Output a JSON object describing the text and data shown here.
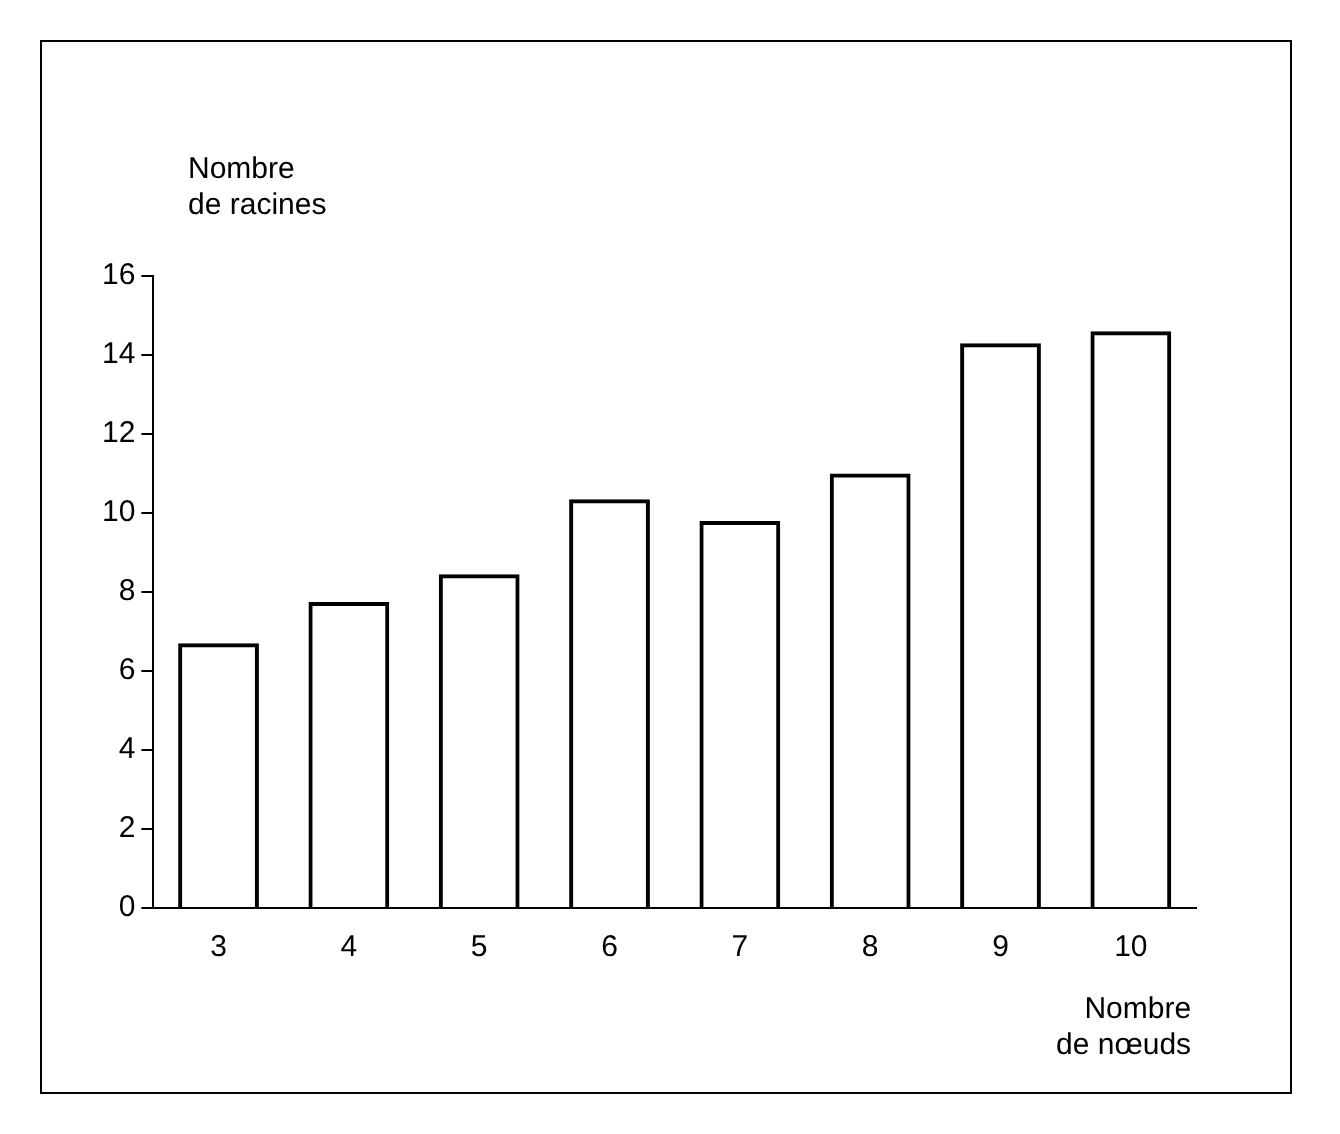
{
  "chart_data": {
    "type": "bar",
    "ylabel": "Nombre\nde racines",
    "xlabel": "Nombre\nde nœuds",
    "categories": [
      "3",
      "4",
      "5",
      "6",
      "7",
      "8",
      "9",
      "10"
    ],
    "values": [
      6.7,
      7.75,
      8.45,
      10.35,
      9.8,
      11.0,
      14.3,
      14.6
    ],
    "color": "#000000",
    "ylim": [
      0,
      16
    ],
    "yticks": [
      0,
      2,
      4,
      6,
      8,
      10,
      12,
      14,
      16
    ],
    "grid": false,
    "legend": false
  }
}
